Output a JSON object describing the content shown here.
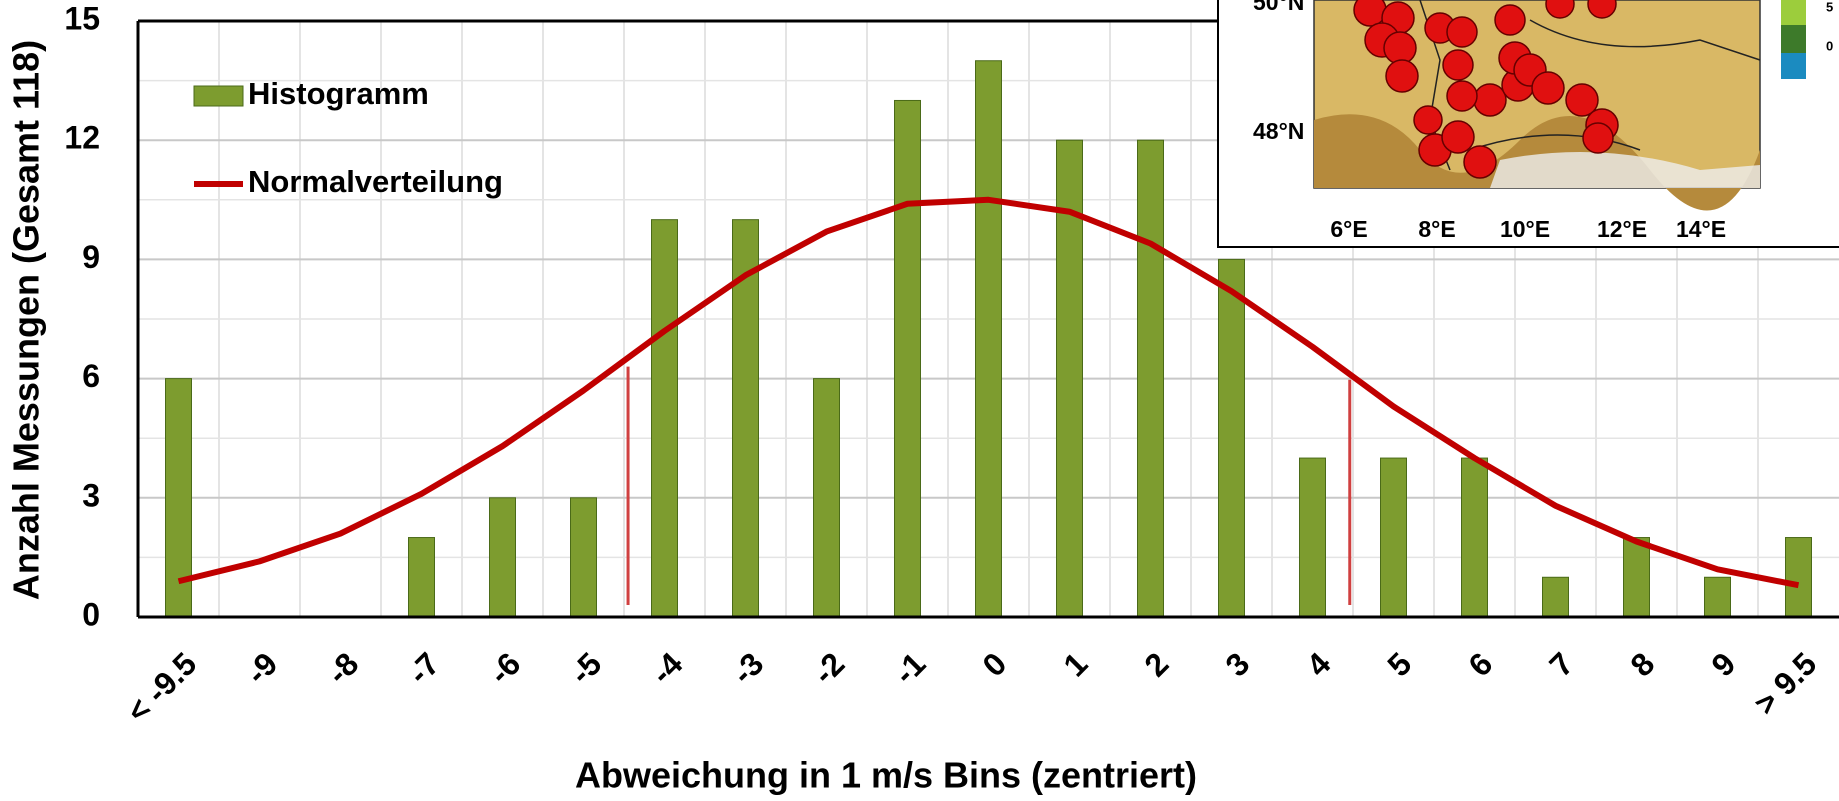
{
  "chart_data": {
    "type": "bar",
    "xlabel": "Abweichung in 1 m/s Bins (zentriert)",
    "ylabel": "Anzahl Messungen (Gesamt 118)",
    "categories": [
      "< -9.5",
      "-9",
      "-8",
      "-7",
      "-6",
      "-5",
      "-4",
      "-3",
      "-2",
      "-1",
      "0",
      "1",
      "2",
      "3",
      "4",
      "5",
      "6",
      "7",
      "8",
      "9",
      "> 9.5"
    ],
    "series": [
      {
        "name": "Histogramm",
        "type": "bar",
        "color": "#7d9c2f",
        "values": [
          6,
          0,
          0,
          2,
          3,
          3,
          10,
          10,
          6,
          13,
          14,
          12,
          12,
          9,
          4,
          4,
          4,
          1,
          2,
          1,
          2
        ]
      },
      {
        "name": "Normalverteilung",
        "type": "line",
        "color": "#c00000",
        "values": [
          0.9,
          1.4,
          2.1,
          3.1,
          4.3,
          5.7,
          7.2,
          8.6,
          9.7,
          10.4,
          10.5,
          10.2,
          9.4,
          8.2,
          6.8,
          5.3,
          4.0,
          2.8,
          1.9,
          1.2,
          0.8
        ]
      }
    ],
    "reference_lines": [
      {
        "x": -4.45,
        "height": 6.3,
        "color": "#d04040"
      },
      {
        "x": 4.46,
        "height": 5.97,
        "color": "#d04040"
      }
    ],
    "ylim": [
      0,
      15
    ],
    "yticks": [
      0,
      3,
      6,
      9,
      12,
      15
    ],
    "grid": true,
    "legend": "upper left",
    "inset_map": {
      "lat_labels": [
        "50°N",
        "48°N"
      ],
      "lon_labels": [
        "6°E",
        "8°E",
        "10°E",
        "12°E",
        "14°E"
      ],
      "colorbar_labels": [
        "5",
        "0"
      ]
    }
  }
}
